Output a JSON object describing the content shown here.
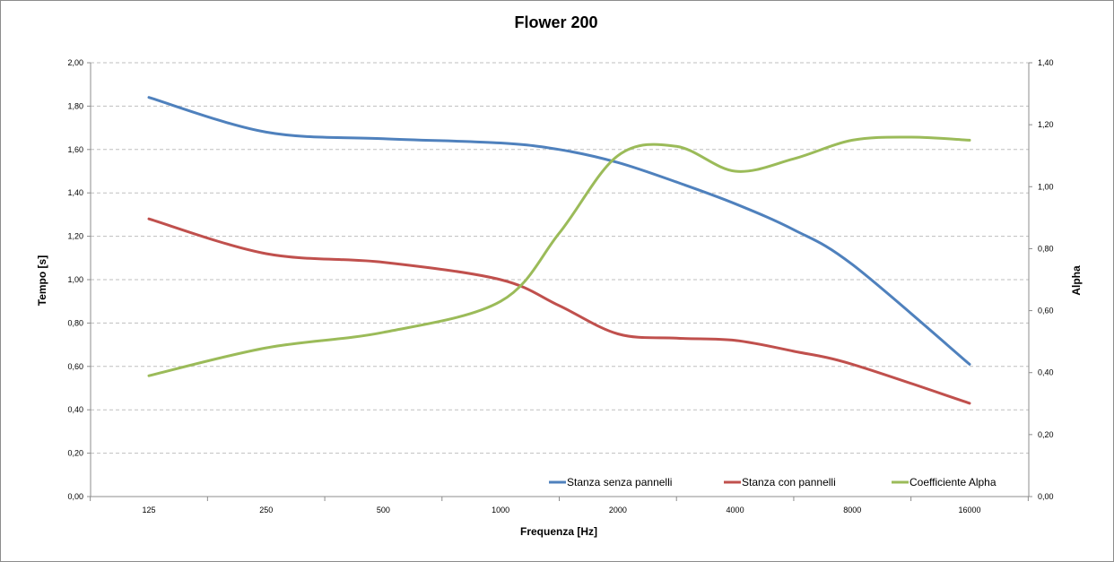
{
  "chart_data": {
    "type": "line",
    "title": "Flower 200",
    "xlabel": "Frequenza [Hz]",
    "ylabel": "Tempo [s]",
    "y2label": "Alpha",
    "categories": [
      "125",
      "250",
      "500",
      "1000",
      "2000",
      "4000",
      "8000",
      "16000"
    ],
    "ylim": [
      0,
      2
    ],
    "y_ticks": [
      "0,00",
      "0,20",
      "0,40",
      "0,60",
      "0,80",
      "1,00",
      "1,20",
      "1,40",
      "1,60",
      "1,80",
      "2,00"
    ],
    "y2lim": [
      0,
      1.4
    ],
    "y2_ticks": [
      "0,00",
      "0,20",
      "0,40",
      "0,60",
      "0,80",
      "1,00",
      "1,20",
      "1,40"
    ],
    "grid": true,
    "legend_position": "bottom-right",
    "series": [
      {
        "name": "Stanza senza pannelli",
        "axis": "left",
        "color": "#4f81bd",
        "x": [
          "125",
          "250",
          "500",
          "1000",
          "1414",
          "2000",
          "2828",
          "4000",
          "5657",
          "8000",
          "16000"
        ],
        "values": [
          1.84,
          1.68,
          1.65,
          1.63,
          1.6,
          1.54,
          1.45,
          1.35,
          1.23,
          1.07,
          0.61
        ]
      },
      {
        "name": "Stanza con pannelli",
        "axis": "left",
        "color": "#c0504d",
        "x": [
          "125",
          "250",
          "500",
          "1000",
          "1414",
          "2000",
          "2828",
          "4000",
          "5657",
          "8000",
          "16000"
        ],
        "values": [
          1.28,
          1.12,
          1.08,
          1.0,
          0.88,
          0.75,
          0.73,
          0.72,
          0.67,
          0.61,
          0.43
        ]
      },
      {
        "name": "Coefficiente Alpha",
        "axis": "right",
        "color": "#9bbb59",
        "x": [
          "125",
          "250",
          "500",
          "1000",
          "1414",
          "2000",
          "2828",
          "4000",
          "5657",
          "8000",
          "11314",
          "16000"
        ],
        "values": [
          0.39,
          0.48,
          0.53,
          0.63,
          0.85,
          1.1,
          1.13,
          1.05,
          1.09,
          1.15,
          1.16,
          1.15
        ]
      }
    ]
  }
}
